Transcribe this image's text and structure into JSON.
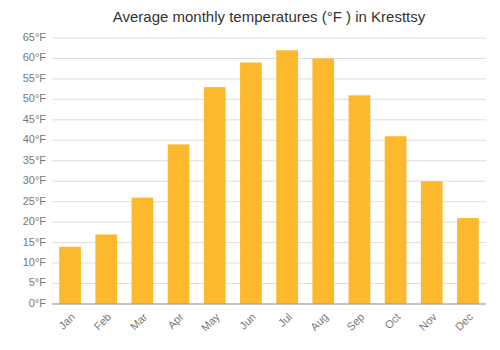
{
  "chart_data": {
    "type": "bar",
    "title": "Average monthly temperatures (°F ) in Kresttsy",
    "categories": [
      "Jan",
      "Feb",
      "Mar",
      "Apr",
      "May",
      "Jun",
      "Jul",
      "Aug",
      "Sep",
      "Oct",
      "Nov",
      "Dec"
    ],
    "values": [
      14,
      17,
      26,
      39,
      53,
      59,
      62,
      60,
      51,
      41,
      30,
      21
    ],
    "color": "#FDB92E",
    "ylim": [
      0,
      65
    ],
    "yticks": [
      {
        "value": 0,
        "label": "0°F"
      },
      {
        "value": 5,
        "label": "5°F"
      },
      {
        "value": 10,
        "label": "10°F"
      },
      {
        "value": 15,
        "label": "15°F"
      },
      {
        "value": 20,
        "label": "20°F"
      },
      {
        "value": 25,
        "label": "25°F"
      },
      {
        "value": 30,
        "label": "30°F"
      },
      {
        "value": 35,
        "label": "35°F"
      },
      {
        "value": 40,
        "label": "40°F"
      },
      {
        "value": 45,
        "label": "45°F"
      },
      {
        "value": 50,
        "label": "50°F"
      },
      {
        "value": 55,
        "label": "55°F"
      },
      {
        "value": 60,
        "label": "60°F"
      },
      {
        "value": 65,
        "label": "65°F"
      }
    ],
    "grid": true
  }
}
